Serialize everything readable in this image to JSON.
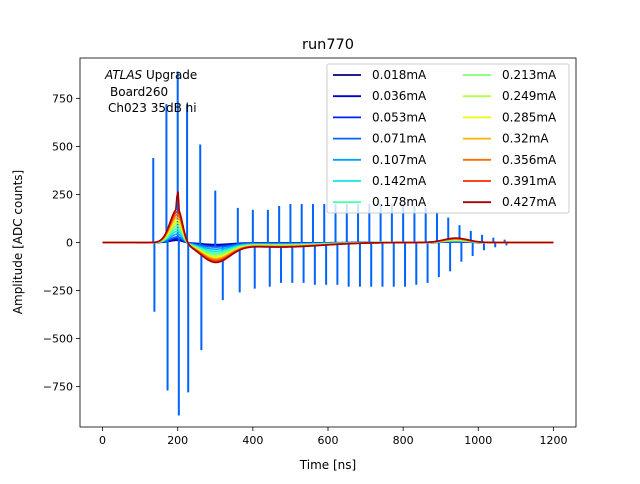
{
  "chart_data": {
    "type": "line",
    "title": "run770",
    "xlabel": "Time [ns]",
    "ylabel": "Amplitude [ADC counts]",
    "xlim": [
      -60,
      1260
    ],
    "ylim": [
      -960,
      960
    ],
    "xticks": [
      0,
      200,
      400,
      600,
      800,
      1000,
      1200
    ],
    "yticks": [
      -750,
      -500,
      -250,
      0,
      250,
      500,
      750
    ],
    "grid": false,
    "legend_position": "top-right",
    "legend_columns": 2,
    "annotation": {
      "atlas": "ATLAS",
      "upgrade": " Upgrade",
      "line2": "Board260",
      "line3": "Ch023 35dB hi"
    },
    "series": [
      {
        "name": "0.018mA",
        "color": "#00007f",
        "peak": 12,
        "undershoot": 10,
        "late": 3
      },
      {
        "name": "0.036mA",
        "color": "#0000d6",
        "peak": 18,
        "undershoot": 14,
        "late": 4
      },
      {
        "name": "0.053mA",
        "color": "#0020ff",
        "peak": 25,
        "undershoot": 18,
        "late": 5
      },
      {
        "name": "0.071mA",
        "color": "#0064ff",
        "peak": 30,
        "undershoot": 22,
        "late": 6,
        "spikes": [
          {
            "t": 110,
            "v": 0
          },
          {
            "t": 135,
            "v": 440
          },
          {
            "t": 138,
            "v": -360
          },
          {
            "t": 170,
            "v": 720
          },
          {
            "t": 173,
            "v": -770
          },
          {
            "t": 200,
            "v": 890
          },
          {
            "t": 203,
            "v": -900
          },
          {
            "t": 225,
            "v": 720
          },
          {
            "t": 228,
            "v": -780
          },
          {
            "t": 260,
            "v": 510
          },
          {
            "t": 263,
            "v": -560
          },
          {
            "t": 300,
            "v": 270
          },
          {
            "t": 320,
            "v": -300
          },
          {
            "t": 360,
            "v": 180
          },
          {
            "t": 365,
            "v": -260
          },
          {
            "t": 400,
            "v": 170
          },
          {
            "t": 405,
            "v": -240
          },
          {
            "t": 440,
            "v": 170
          },
          {
            "t": 445,
            "v": -230
          },
          {
            "t": 470,
            "v": 190
          },
          {
            "t": 475,
            "v": -210
          },
          {
            "t": 500,
            "v": 200
          },
          {
            "t": 505,
            "v": -210
          },
          {
            "t": 530,
            "v": 200
          },
          {
            "t": 535,
            "v": -210
          },
          {
            "t": 560,
            "v": 200
          },
          {
            "t": 565,
            "v": -220
          },
          {
            "t": 590,
            "v": 200
          },
          {
            "t": 595,
            "v": -220
          },
          {
            "t": 620,
            "v": 200
          },
          {
            "t": 625,
            "v": -220
          },
          {
            "t": 650,
            "v": 200
          },
          {
            "t": 655,
            "v": -230
          },
          {
            "t": 680,
            "v": 200
          },
          {
            "t": 685,
            "v": -230
          },
          {
            "t": 710,
            "v": 200
          },
          {
            "t": 715,
            "v": -230
          },
          {
            "t": 740,
            "v": 200
          },
          {
            "t": 745,
            "v": -230
          },
          {
            "t": 770,
            "v": 200
          },
          {
            "t": 775,
            "v": -230
          },
          {
            "t": 800,
            "v": 200
          },
          {
            "t": 805,
            "v": -230
          },
          {
            "t": 830,
            "v": 190
          },
          {
            "t": 835,
            "v": -220
          },
          {
            "t": 860,
            "v": 180
          },
          {
            "t": 865,
            "v": -210
          },
          {
            "t": 890,
            "v": 160
          },
          {
            "t": 895,
            "v": -180
          },
          {
            "t": 920,
            "v": 130
          },
          {
            "t": 925,
            "v": -150
          },
          {
            "t": 950,
            "v": 90
          },
          {
            "t": 955,
            "v": -100
          },
          {
            "t": 980,
            "v": 60
          },
          {
            "t": 985,
            "v": -70
          },
          {
            "t": 1010,
            "v": 40
          },
          {
            "t": 1015,
            "v": -40
          },
          {
            "t": 1040,
            "v": 25
          },
          {
            "t": 1045,
            "v": -25
          },
          {
            "t": 1070,
            "v": 15
          },
          {
            "t": 1075,
            "v": -15
          }
        ]
      },
      {
        "name": "0.107mA",
        "color": "#00a4ff",
        "peak": 45,
        "undershoot": 32,
        "late": 8
      },
      {
        "name": "0.142mA",
        "color": "#13e4e4",
        "peak": 60,
        "undershoot": 42,
        "late": 9
      },
      {
        "name": "0.178mA",
        "color": "#4affad",
        "peak": 75,
        "undershoot": 50,
        "late": 11
      },
      {
        "name": "0.213mA",
        "color": "#7dff7a",
        "peak": 90,
        "undershoot": 58,
        "late": 12
      },
      {
        "name": "0.249mA",
        "color": "#b4ff43",
        "peak": 105,
        "undershoot": 66,
        "late": 14
      },
      {
        "name": "0.285mA",
        "color": "#eaff0d",
        "peak": 120,
        "undershoot": 72,
        "late": 15
      },
      {
        "name": "0.32mA",
        "color": "#ffb200",
        "peak": 135,
        "undershoot": 78,
        "late": 17
      },
      {
        "name": "0.356mA",
        "color": "#ff6c00",
        "peak": 150,
        "undershoot": 84,
        "late": 19
      },
      {
        "name": "0.391mA",
        "color": "#ff2a00",
        "peak": 165,
        "undershoot": 90,
        "late": 21
      },
      {
        "name": "0.427mA",
        "color": "#a40000",
        "peak": 180,
        "undershoot": 96,
        "late": 23,
        "tip": 290
      }
    ]
  }
}
